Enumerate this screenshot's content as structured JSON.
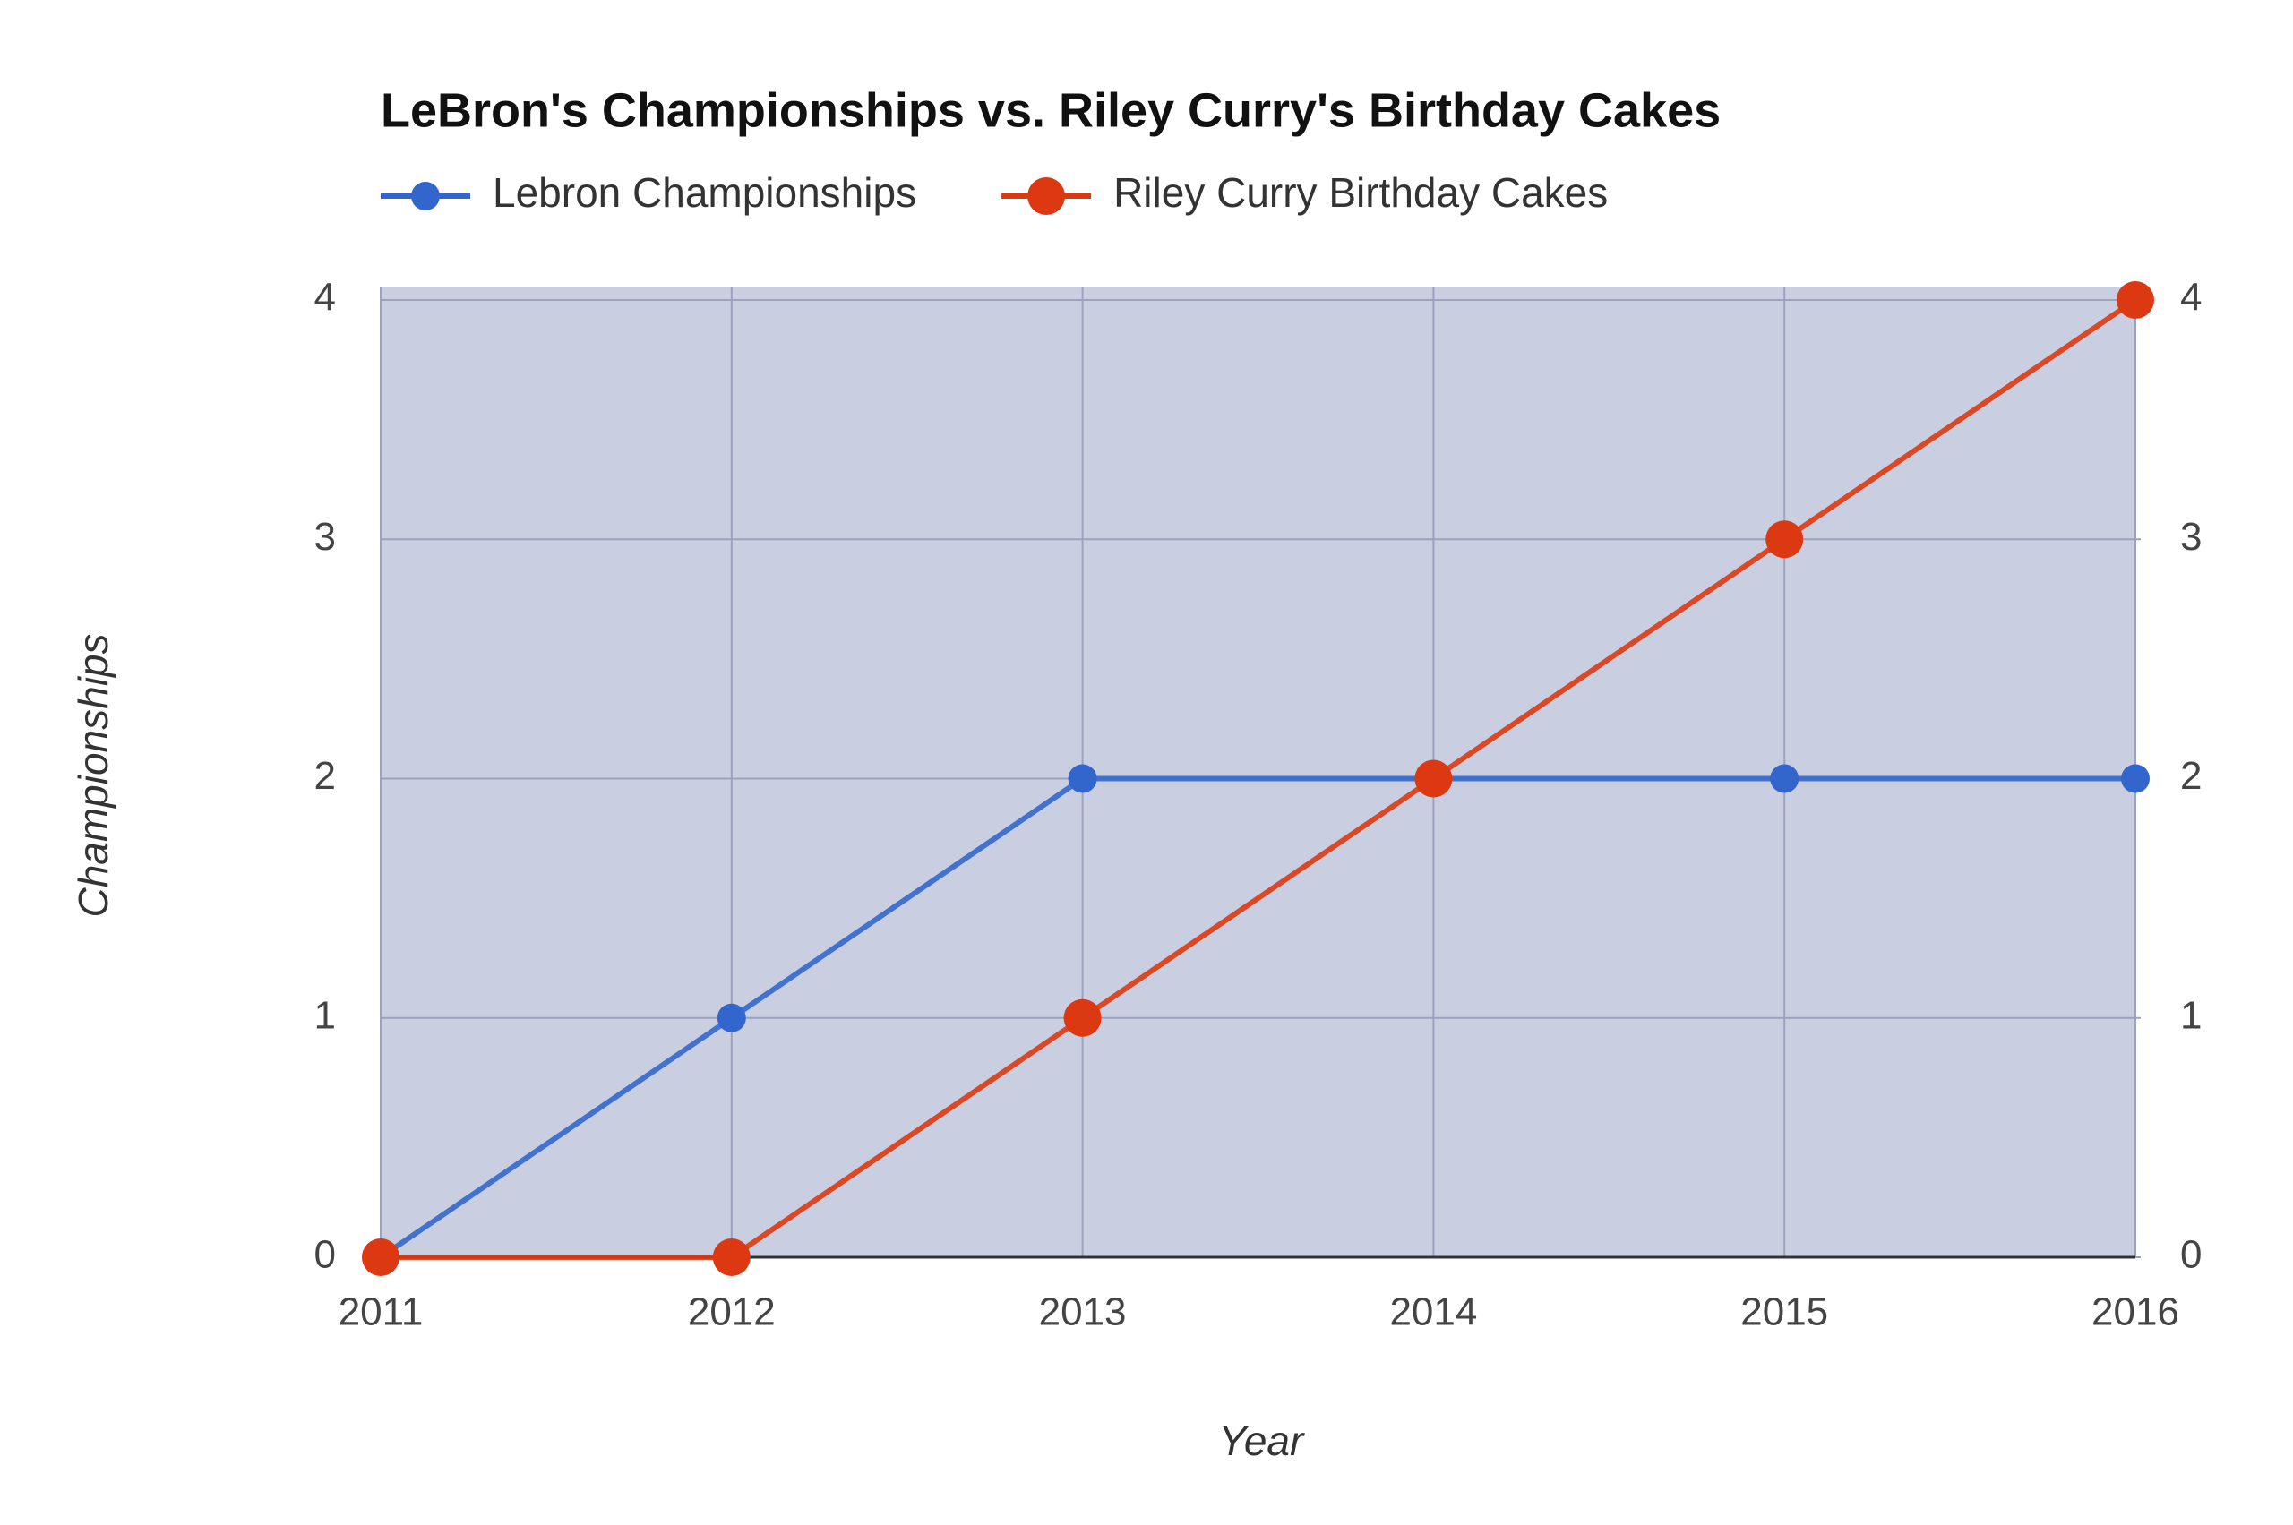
{
  "chart_data": {
    "type": "line",
    "title": "LeBron's Championships vs. Riley Curry's Birthday Cakes",
    "x": [
      2011,
      2012,
      2013,
      2014,
      2015,
      2016
    ],
    "x_label": "Year",
    "y_label": "Championships",
    "xlim": [
      2011,
      2016
    ],
    "xticks": [
      2011,
      2012,
      2013,
      2014,
      2015,
      2016
    ],
    "ylim": [
      0,
      4
    ],
    "yticks": [
      0,
      1,
      2,
      3,
      4
    ],
    "y2lim": [
      0,
      4
    ],
    "y2ticks": [
      0,
      1,
      2,
      3,
      4
    ],
    "grid": true,
    "legend": "top",
    "series": [
      {
        "name": "Lebron Championships",
        "color": "#3366cc",
        "values": [
          0,
          1,
          2,
          2,
          2,
          2
        ]
      },
      {
        "name": "Riley Curry Birthday Cakes",
        "color": "#dc3912",
        "values": [
          0,
          0,
          1,
          2,
          3,
          4
        ],
        "axis": "y2"
      }
    ]
  }
}
